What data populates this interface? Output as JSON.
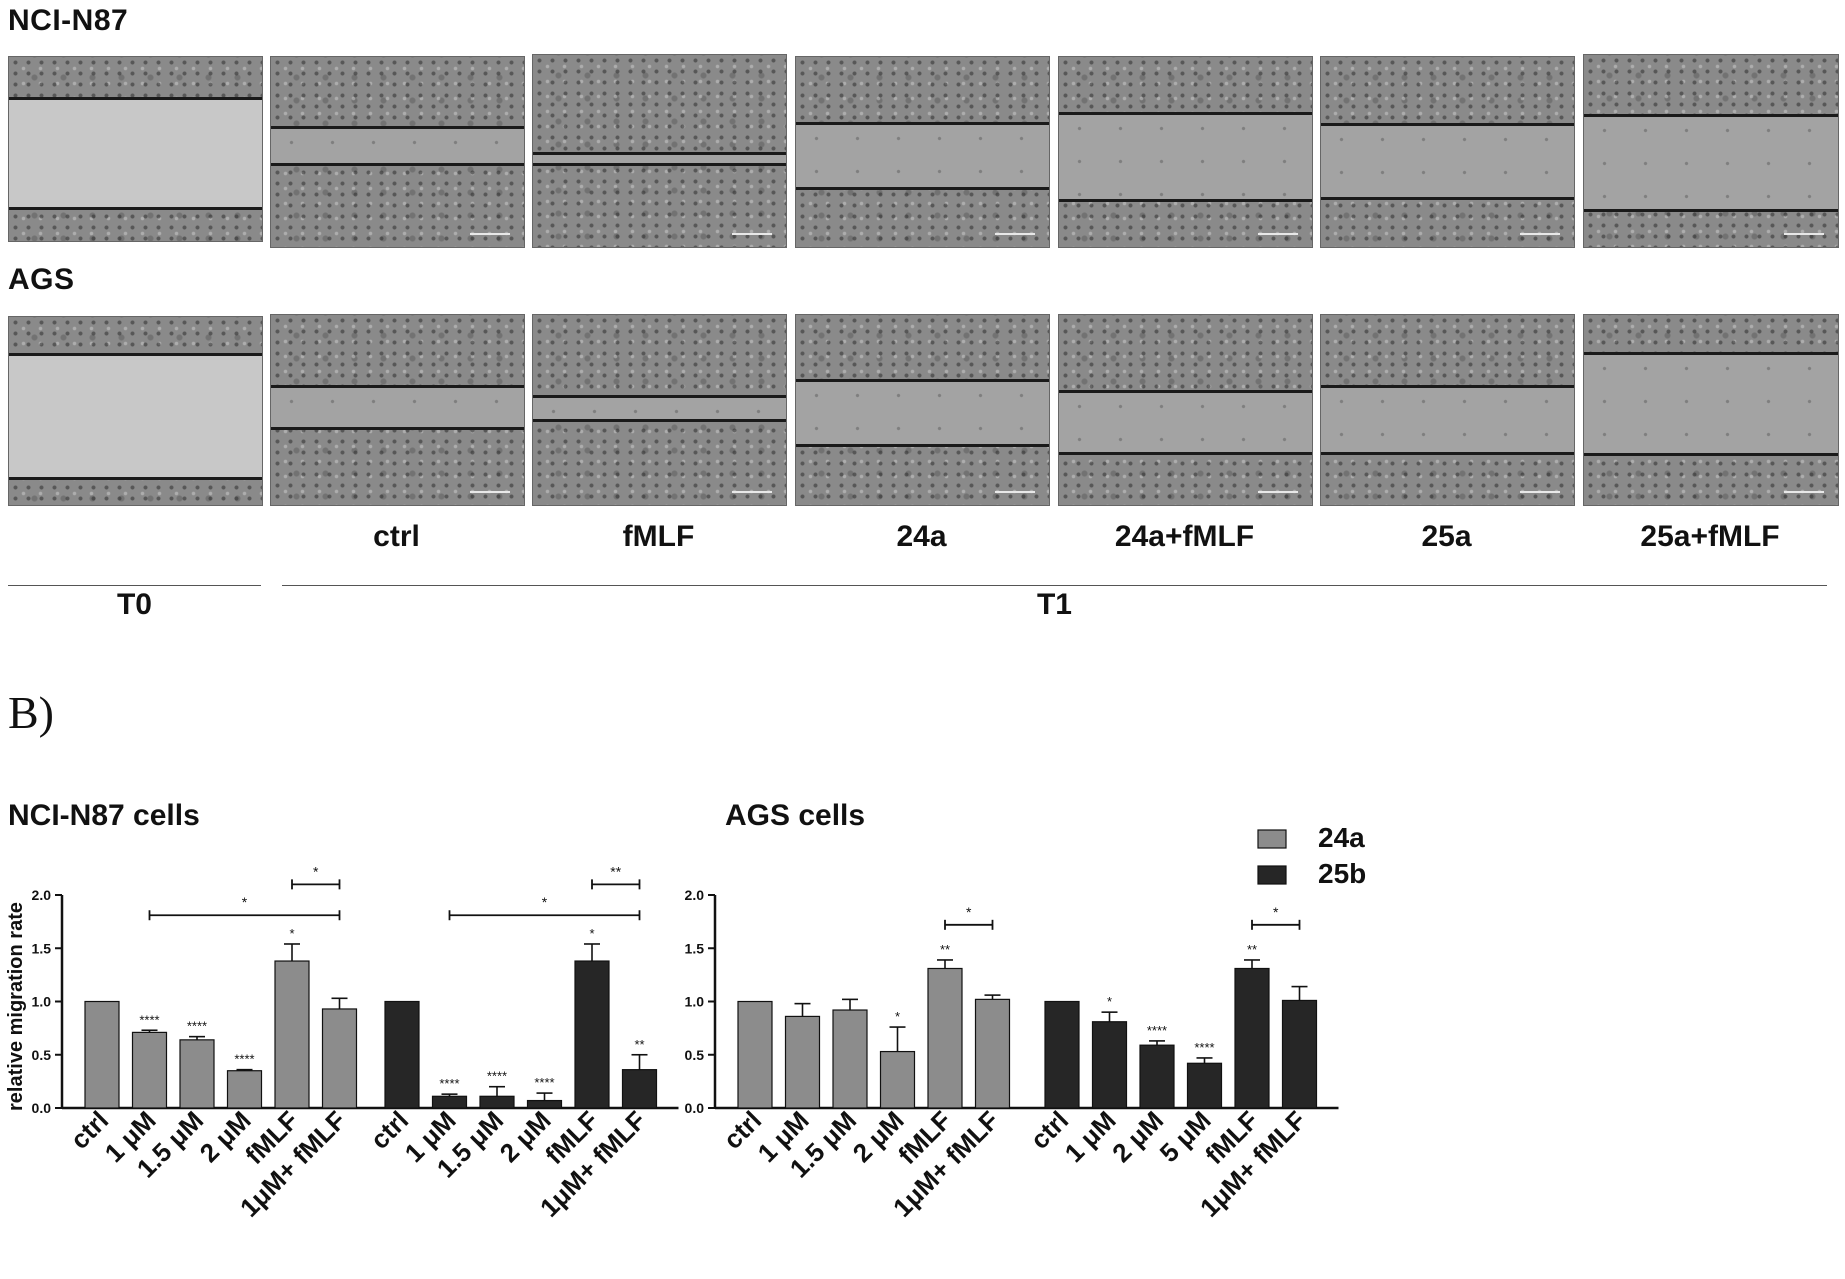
{
  "panelA": {
    "rows": [
      {
        "label": "NCI-N87"
      },
      {
        "label": "AGS"
      }
    ],
    "conditions": [
      "ctrl",
      "fMLF",
      "24a",
      "24a+fMLF",
      "25a",
      "25a+fMLF"
    ],
    "timepoints": {
      "t0": "T0",
      "t1": "T1"
    }
  },
  "panelB": {
    "letter": "B)"
  },
  "colors": {
    "series_24a": "#8c8c8c",
    "series_25b": "#262626",
    "axis": "#111111"
  },
  "legend": {
    "placement": "top-right",
    "items": [
      "24a",
      "25b"
    ]
  },
  "chart_data": [
    {
      "type": "bar",
      "title": "NCI-N87 cells",
      "ylabel": "relative migration rate",
      "ylim": [
        0,
        2.0
      ],
      "yticks": [
        "0.0",
        "0.5",
        "1.0",
        "1.5",
        "2.0"
      ],
      "series": [
        {
          "name": "24a",
          "categories": [
            "ctrl",
            "1 μM",
            "1.5 μM",
            "2 μM",
            "fMLF",
            "1μM+ fMLF"
          ],
          "values": [
            1.0,
            0.71,
            0.64,
            0.35,
            1.38,
            0.93
          ],
          "errors": [
            0,
            0.02,
            0.03,
            0.01,
            0.16,
            0.1
          ],
          "significance": [
            "",
            "****",
            "****",
            "****",
            "*",
            ""
          ]
        },
        {
          "name": "25b",
          "categories": [
            "ctrl",
            "1 μM",
            "1.5 μM",
            "2 μM",
            "fMLF",
            "1μM+ fMLF"
          ],
          "values": [
            1.0,
            0.11,
            0.11,
            0.07,
            1.38,
            0.36
          ],
          "errors": [
            0,
            0.02,
            0.09,
            0.07,
            0.16,
            0.14
          ],
          "significance": [
            "",
            "****",
            "****",
            "****",
            "*",
            "**"
          ]
        }
      ],
      "brackets": [
        {
          "series": 0,
          "from": 1,
          "to": 5,
          "label": "*",
          "y": 1.81
        },
        {
          "series": 0,
          "from": 4,
          "to": 5,
          "label": "*",
          "y": 2.1
        },
        {
          "series": 1,
          "from": 1,
          "to": 5,
          "label": "*",
          "y": 1.81
        },
        {
          "series": 1,
          "from": 4,
          "to": 5,
          "label": "**",
          "y": 2.1
        }
      ]
    },
    {
      "type": "bar",
      "title": "AGS cells",
      "ylabel": "",
      "ylim": [
        0,
        2.0
      ],
      "yticks": [
        "0.0",
        "0.5",
        "1.0",
        "1.5",
        "2.0"
      ],
      "series": [
        {
          "name": "24a",
          "categories": [
            "ctrl",
            "1 μM",
            "1.5 μM",
            "2 μM",
            "fMLF",
            "1μM+ fMLF"
          ],
          "values": [
            1.0,
            0.86,
            0.92,
            0.53,
            1.31,
            1.02
          ],
          "errors": [
            0,
            0.12,
            0.1,
            0.23,
            0.08,
            0.04
          ],
          "significance": [
            "",
            "",
            "",
            "*",
            "**",
            ""
          ]
        },
        {
          "name": "25b",
          "categories": [
            "ctrl",
            "1 μM",
            "2 μM",
            "5 μM",
            "fMLF",
            "1μM+ fMLF"
          ],
          "values": [
            1.0,
            0.81,
            0.59,
            0.42,
            1.31,
            1.01
          ],
          "errors": [
            0,
            0.09,
            0.04,
            0.05,
            0.08,
            0.13
          ],
          "significance": [
            "",
            "*",
            "****",
            "****",
            "**",
            ""
          ]
        }
      ],
      "brackets": [
        {
          "series": 0,
          "from": 4,
          "to": 5,
          "label": "*",
          "y": 1.72
        },
        {
          "series": 1,
          "from": 4,
          "to": 5,
          "label": "*",
          "y": 1.72
        }
      ]
    }
  ]
}
